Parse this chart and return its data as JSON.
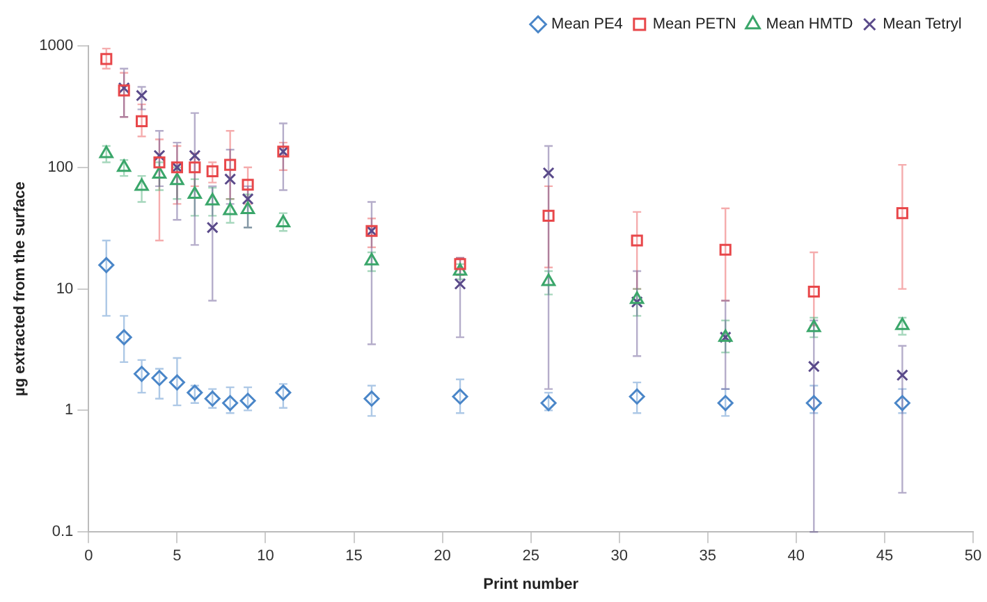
{
  "chart_data": {
    "type": "scatter",
    "xlabel": "Print number",
    "ylabel": "µg extracted from the surface",
    "log": "y",
    "grid": false,
    "legend": "top right",
    "xlim": [
      0,
      50
    ],
    "xticks": [
      0,
      5,
      10,
      15,
      20,
      25,
      30,
      35,
      40,
      45,
      50
    ],
    "ylim": [
      0.1,
      1000
    ],
    "yticks": [
      0.1,
      1,
      10,
      100,
      1000
    ],
    "series": [
      {
        "name": "Mean PE4",
        "color": "#4a86c8",
        "marker": "diamond",
        "x": [
          1,
          2,
          3,
          4,
          5,
          6,
          7,
          8,
          9,
          11,
          16,
          21,
          26,
          31,
          36,
          41,
          46
        ],
        "values": [
          15.7,
          4,
          2,
          1.85,
          1.7,
          1.4,
          1.25,
          1.15,
          1.2,
          1.4,
          1.25,
          1.3,
          1.15,
          1.3,
          1.15,
          1.15,
          1.15
        ],
        "errors": [
          [
            6,
            25
          ],
          [
            2.5,
            6
          ],
          [
            1.4,
            2.6
          ],
          [
            1.25,
            2.2
          ],
          [
            1.1,
            2.7
          ],
          [
            1.15,
            1.6
          ],
          [
            1.05,
            1.5
          ],
          [
            0.95,
            1.55
          ],
          [
            1,
            1.55
          ],
          [
            1.05,
            1.65
          ],
          [
            0.9,
            1.6
          ],
          [
            0.95,
            1.8
          ],
          [
            1,
            1.4
          ],
          [
            0.95,
            1.7
          ],
          [
            0.9,
            1.5
          ],
          [
            0.95,
            1.6
          ],
          [
            0.95,
            1.5
          ]
        ]
      },
      {
        "name": "Mean PETN",
        "color": "#e8474a",
        "marker": "square",
        "x": [
          1,
          2,
          3,
          4,
          5,
          6,
          7,
          8,
          9,
          11,
          16,
          21,
          26,
          31,
          36,
          41,
          46
        ],
        "values": [
          780,
          430,
          240,
          110,
          100,
          100,
          93,
          105,
          72,
          135,
          30,
          16,
          40,
          25,
          21,
          9.5,
          42
        ],
        "errors": [
          [
            650,
            950
          ],
          [
            260,
            600
          ],
          [
            180,
            330
          ],
          [
            25,
            170
          ],
          [
            50,
            150
          ],
          [
            70,
            130
          ],
          [
            75,
            110
          ],
          [
            55,
            200
          ],
          [
            50,
            100
          ],
          [
            95,
            160
          ],
          [
            22,
            38
          ],
          [
            13,
            18
          ],
          [
            15,
            70
          ],
          [
            10,
            43
          ],
          [
            8,
            46
          ],
          [
            5,
            20
          ],
          [
            10,
            105
          ]
        ]
      },
      {
        "name": "Mean HMTD",
        "color": "#3aa66a",
        "marker": "triangle",
        "x": [
          1,
          2,
          3,
          4,
          5,
          6,
          7,
          8,
          9,
          11,
          16,
          21,
          26,
          31,
          36,
          41,
          46
        ],
        "values": [
          130,
          100,
          70,
          88,
          78,
          60,
          53,
          44,
          45,
          35,
          17,
          14,
          11.5,
          8.2,
          4,
          4.8,
          5
        ],
        "errors": [
          [
            110,
            150
          ],
          [
            85,
            115
          ],
          [
            52,
            85
          ],
          [
            65,
            110
          ],
          [
            55,
            100
          ],
          [
            40,
            80
          ],
          [
            40,
            68
          ],
          [
            35,
            55
          ],
          [
            32,
            60
          ],
          [
            30,
            42
          ],
          [
            14,
            20
          ],
          [
            12,
            16
          ],
          [
            9,
            14
          ],
          [
            6,
            10
          ],
          [
            3,
            5.5
          ],
          [
            4,
            5.8
          ],
          [
            4.2,
            5.8
          ]
        ]
      },
      {
        "name": "Mean Tetryl",
        "color": "#5a4a8a",
        "marker": "cross",
        "x": [
          2,
          3,
          4,
          5,
          6,
          7,
          8,
          9,
          11,
          16,
          21,
          26,
          31,
          36,
          41,
          46
        ],
        "values": [
          450,
          390,
          125,
          100,
          125,
          32,
          80,
          55,
          135,
          30,
          11,
          90,
          7.8,
          4,
          2.3,
          1.95
        ],
        "errors": [
          [
            260,
            650
          ],
          [
            300,
            460
          ],
          [
            70,
            200
          ],
          [
            37,
            160
          ],
          [
            23,
            280
          ],
          [
            8,
            70
          ],
          [
            50,
            140
          ],
          [
            32,
            70
          ],
          [
            65,
            230
          ],
          [
            3.5,
            52
          ],
          [
            4,
            18
          ],
          [
            1.5,
            150
          ],
          [
            2.8,
            14
          ],
          [
            1.5,
            8
          ],
          [
            0.1,
            5.5
          ],
          [
            0.21,
            3.4
          ]
        ]
      }
    ]
  }
}
